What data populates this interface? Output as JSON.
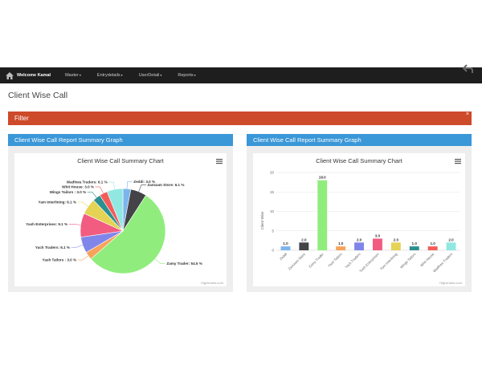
{
  "nav": {
    "welcome": "Welcome Kamal",
    "menu": [
      {
        "label": "Master"
      },
      {
        "label": "Entrydetails"
      },
      {
        "label": "UserDetail"
      },
      {
        "label": "Reports"
      }
    ],
    "icons": [
      "home-icon",
      "back-arrow-icon",
      "chevron-down-icon"
    ]
  },
  "page": {
    "title": "Client Wise Call"
  },
  "filter": {
    "label": "Filter",
    "close_glyph": "×"
  },
  "panels": {
    "left_title": "Client Wise Call Report Summary Graph",
    "right_title": "Client Wise Call Report Summary Graph"
  },
  "credits": "Highcharts.com",
  "chart_data": [
    {
      "type": "pie",
      "title": "Client Wise Call Summary Chart",
      "slices": [
        {
          "name": "Zeddi",
          "value": 3.0,
          "label": "Zeddi: 3.0 %",
          "color": "#7cb5ec"
        },
        {
          "name": "Zamzam Store",
          "value": 6.1,
          "label": "Zamzam Store: 6.1 %",
          "color": "#434348"
        },
        {
          "name": "Zamy Trader",
          "value": 54.5,
          "label": "Zamy Trader: 54.5 %",
          "color": "#90ed7d"
        },
        {
          "name": "Yash Tailors",
          "value": 3.0,
          "label": "Yash Tailors : 3.0 %",
          "color": "#f7a35c"
        },
        {
          "name": "Yach Traders",
          "value": 6.1,
          "label": "Yach Traders: 6.1 %",
          "color": "#8085e9"
        },
        {
          "name": "Yash Enterprises",
          "value": 9.1,
          "label": "Yash Enterprises: 9.1 %",
          "color": "#f15c80"
        },
        {
          "name": "Yam Interlining",
          "value": 6.1,
          "label": "Yam Interlining: 6.1 %",
          "color": "#e4d354"
        },
        {
          "name": "Wings Tailors",
          "value": 3.0,
          "label": "Wings Tailors : 3.0 %",
          "color": "#2b908f"
        },
        {
          "name": "Whit House",
          "value": 3.0,
          "label": "Whit House: 3.0 %",
          "color": "#f45b5b"
        },
        {
          "name": "Wadhwa Traders",
          "value": 6.1,
          "label": "Wadhwa Traders: 6.1 %",
          "color": "#91e8e1"
        }
      ]
    },
    {
      "type": "bar",
      "title": "Client Wise Call Summary Chart",
      "ylabel": "Client Wise",
      "ylim": [
        0,
        20
      ],
      "yticks": [
        0,
        5,
        10,
        15,
        20
      ],
      "categories": [
        "Zeddi",
        "Zamzam Store",
        "Zamy Trader",
        "Yash Tailors",
        "Yach Traders",
        "Yash Enterprises",
        "Yam Interlining",
        "Wings Tailors",
        "Whit House",
        "Wadhwa Traders"
      ],
      "values": [
        1.0,
        2.0,
        18.0,
        1.0,
        2.0,
        3.0,
        2.0,
        1.0,
        1.0,
        2.0
      ],
      "value_labels": [
        "1.0",
        "2.0",
        "18.0",
        "1.0",
        "2.0",
        "3.0",
        "2.0",
        "1.0",
        "1.0",
        "2.0"
      ],
      "colors": [
        "#7cb5ec",
        "#434348",
        "#90ed7d",
        "#f7a35c",
        "#8085e9",
        "#f15c80",
        "#e4d354",
        "#2b908f",
        "#f45b5b",
        "#91e8e1"
      ],
      "grid": true
    }
  ]
}
